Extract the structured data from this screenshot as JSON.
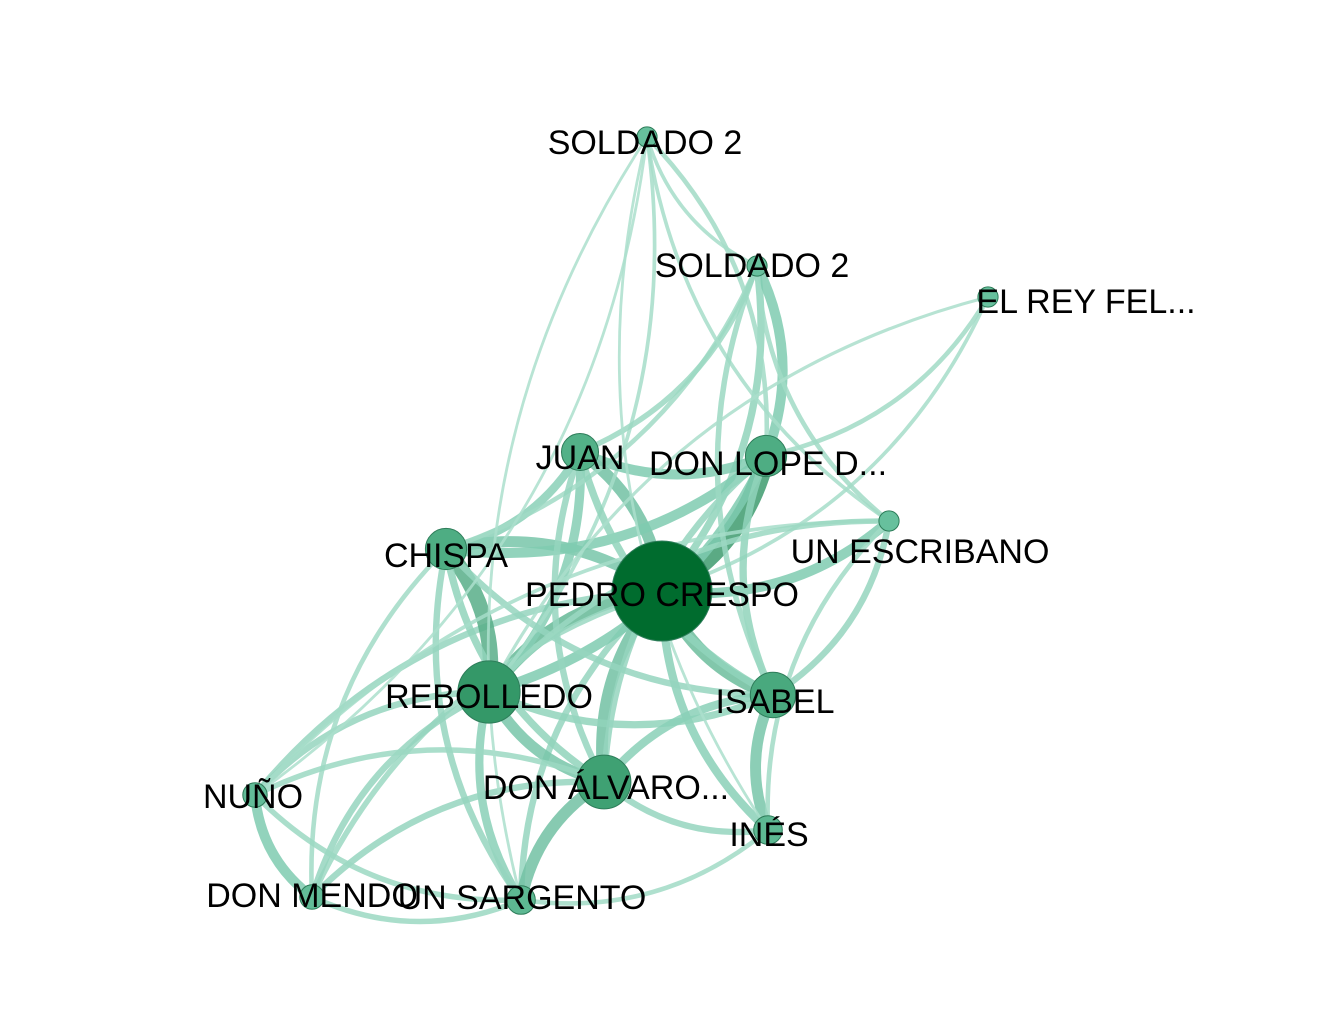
{
  "palette": {
    "edge_light": "#b7e4d4",
    "edge_mid": "#7fcbb0",
    "edge_dark": "#3e9b6e",
    "node_light": "#6cc4a2",
    "node_mid": "#3a9d6e",
    "node_dark": "#006c2e",
    "label": "#000000"
  },
  "nodes": [
    {
      "id": "pedro",
      "label": "PEDRO CRESPO",
      "weight": 1.0
    },
    {
      "id": "rebolledo",
      "label": "REBOLLEDO",
      "weight": 0.55
    },
    {
      "id": "chispa",
      "label": "CHISPA",
      "weight": 0.3
    },
    {
      "id": "juan",
      "label": "JUAN",
      "weight": 0.25
    },
    {
      "id": "lope",
      "label": "DON LOPE D...",
      "weight": 0.3
    },
    {
      "id": "isabel",
      "label": "ISABEL",
      "weight": 0.35
    },
    {
      "id": "alvaro",
      "label": "DON ÁLVARO...",
      "weight": 0.45
    },
    {
      "id": "escribano",
      "label": "UN ESCRIBANO",
      "weight": 0.05
    },
    {
      "id": "soldado2a",
      "label": "SOLDADO 2",
      "weight": 0.05
    },
    {
      "id": "soldado2b",
      "label": "SOLDADO 2",
      "weight": 0.05
    },
    {
      "id": "rey",
      "label": "EL REY FEL...",
      "weight": 0.05
    },
    {
      "id": "nuno",
      "label": "NUÑO",
      "weight": 0.1
    },
    {
      "id": "mendo",
      "label": "DON MENDO",
      "weight": 0.1
    },
    {
      "id": "sargento",
      "label": "UN SARGENTO",
      "weight": 0.15
    },
    {
      "id": "ines",
      "label": "INÉS",
      "weight": 0.15
    }
  ],
  "edges": [
    {
      "source": "pedro",
      "target": "lope",
      "weight": 1.0
    },
    {
      "source": "pedro",
      "target": "rebolledo",
      "weight": 0.7
    },
    {
      "source": "pedro",
      "target": "juan",
      "weight": 0.6
    },
    {
      "source": "pedro",
      "target": "isabel",
      "weight": 0.65
    },
    {
      "source": "pedro",
      "target": "chispa",
      "weight": 0.55
    },
    {
      "source": "pedro",
      "target": "alvaro",
      "weight": 0.6
    },
    {
      "source": "pedro",
      "target": "escribano",
      "weight": 0.5
    },
    {
      "source": "pedro",
      "target": "ines",
      "weight": 0.4
    },
    {
      "source": "pedro",
      "target": "soldado2b",
      "weight": 0.35
    },
    {
      "source": "pedro",
      "target": "nuno",
      "weight": 0.3
    },
    {
      "source": "pedro",
      "target": "mendo",
      "weight": 0.25
    },
    {
      "source": "pedro",
      "target": "sargento",
      "weight": 0.3
    },
    {
      "source": "pedro",
      "target": "rey",
      "weight": 0.15
    },
    {
      "source": "rebolledo",
      "target": "chispa",
      "weight": 0.8
    },
    {
      "source": "rebolledo",
      "target": "alvaro",
      "weight": 0.55
    },
    {
      "source": "rebolledo",
      "target": "juan",
      "weight": 0.45
    },
    {
      "source": "rebolledo",
      "target": "lope",
      "weight": 0.5
    },
    {
      "source": "rebolledo",
      "target": "isabel",
      "weight": 0.35
    },
    {
      "source": "rebolledo",
      "target": "nuno",
      "weight": 0.3
    },
    {
      "source": "rebolledo",
      "target": "mendo",
      "weight": 0.3
    },
    {
      "source": "rebolledo",
      "target": "sargento",
      "weight": 0.4
    },
    {
      "source": "rebolledo",
      "target": "soldado2a",
      "weight": 0.15
    },
    {
      "source": "chispa",
      "target": "juan",
      "weight": 0.4
    },
    {
      "source": "chispa",
      "target": "lope",
      "weight": 0.5
    },
    {
      "source": "chispa",
      "target": "alvaro",
      "weight": 0.35
    },
    {
      "source": "chispa",
      "target": "sargento",
      "weight": 0.3
    },
    {
      "source": "chispa",
      "target": "mendo",
      "weight": 0.2
    },
    {
      "source": "chispa",
      "target": "soldado2b",
      "weight": 0.2
    },
    {
      "source": "chispa",
      "target": "isabel",
      "weight": 0.3
    },
    {
      "source": "juan",
      "target": "lope",
      "weight": 0.5
    },
    {
      "source": "juan",
      "target": "isabel",
      "weight": 0.35
    },
    {
      "source": "juan",
      "target": "alvaro",
      "weight": 0.3
    },
    {
      "source": "juan",
      "target": "soldado2b",
      "weight": 0.25
    },
    {
      "source": "lope",
      "target": "soldado2b",
      "weight": 0.5
    },
    {
      "source": "lope",
      "target": "soldado2a",
      "weight": 0.2
    },
    {
      "source": "lope",
      "target": "isabel",
      "weight": 0.35
    },
    {
      "source": "lope",
      "target": "alvaro",
      "weight": 0.3
    },
    {
      "source": "lope",
      "target": "rey",
      "weight": 0.2
    },
    {
      "source": "isabel",
      "target": "alvaro",
      "weight": 0.4
    },
    {
      "source": "isabel",
      "target": "ines",
      "weight": 0.55
    },
    {
      "source": "isabel",
      "target": "escribano",
      "weight": 0.3
    },
    {
      "source": "alvaro",
      "target": "sargento",
      "weight": 0.6
    },
    {
      "source": "alvaro",
      "target": "ines",
      "weight": 0.3
    },
    {
      "source": "alvaro",
      "target": "mendo",
      "weight": 0.3
    },
    {
      "source": "alvaro",
      "target": "nuno",
      "weight": 0.25
    },
    {
      "source": "nuno",
      "target": "mendo",
      "weight": 0.5
    },
    {
      "source": "nuno",
      "target": "sargento",
      "weight": 0.25
    },
    {
      "source": "nuno",
      "target": "soldado2a",
      "weight": 0.1
    },
    {
      "source": "mendo",
      "target": "sargento",
      "weight": 0.25
    },
    {
      "source": "soldado2a",
      "target": "soldado2b",
      "weight": 0.15
    },
    {
      "source": "soldado2a",
      "target": "escribano",
      "weight": 0.15
    },
    {
      "source": "soldado2a",
      "target": "ines",
      "weight": 0.1
    },
    {
      "source": "soldado2a",
      "target": "sargento",
      "weight": 0.1
    },
    {
      "source": "soldado2b",
      "target": "escribano",
      "weight": 0.2
    },
    {
      "source": "soldado2b",
      "target": "isabel",
      "weight": 0.25
    },
    {
      "source": "escribano",
      "target": "ines",
      "weight": 0.2
    },
    {
      "source": "escribano",
      "target": "nuno",
      "weight": 0.15
    },
    {
      "source": "escribano",
      "target": "rebolledo",
      "weight": 0.25
    },
    {
      "source": "sargento",
      "target": "ines",
      "weight": 0.2
    },
    {
      "source": "rey",
      "target": "rebolledo",
      "weight": 0.12
    }
  ]
}
